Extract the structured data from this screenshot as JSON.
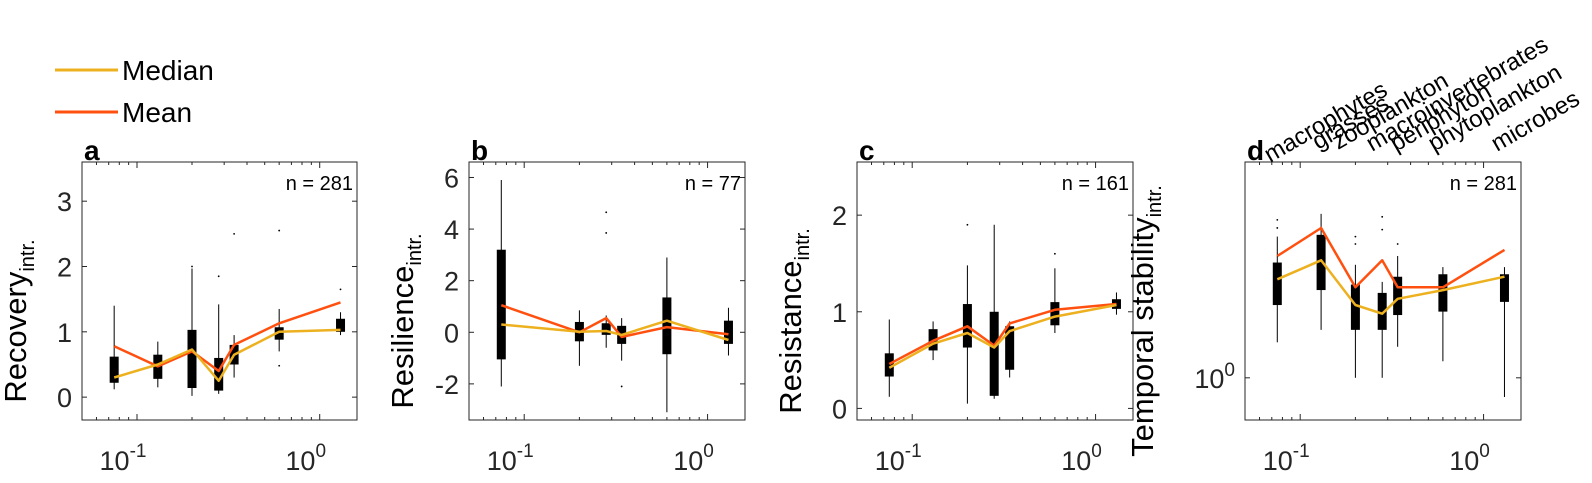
{
  "legend": [
    {
      "label": "Median",
      "color": "#EDB120"
    },
    {
      "label": "Mean",
      "color": "#FF5010"
    }
  ],
  "categories": [
    "macrophytes",
    "grasses",
    "zooplankton",
    "macroinvertebrates",
    "periphyton",
    "phytoplankton",
    "microbes"
  ],
  "chart_data": [
    {
      "type": "box",
      "panel_label": "a",
      "n_text": "n = 281",
      "ylabel_main": "Recovery",
      "ylabel_sub": "intr.",
      "xscale": "log",
      "xlim": [
        0.05,
        1.6
      ],
      "ylim": [
        -0.35,
        3.6
      ],
      "yticks": [
        {
          "v": 0,
          "t": "0"
        },
        {
          "v": 1,
          "t": "1"
        },
        {
          "v": 2,
          "t": "2"
        },
        {
          "v": 3,
          "t": "3"
        }
      ],
      "xticks": [
        {
          "v": 0.1,
          "b": "10",
          "e": "-1"
        },
        {
          "v": 1,
          "b": "10",
          "e": "0"
        }
      ],
      "x": [
        0.075,
        0.13,
        0.2,
        0.28,
        0.34,
        0.6,
        1.3
      ],
      "median": [
        0.3,
        0.5,
        0.73,
        0.25,
        0.65,
        1.0,
        1.03
      ],
      "mean": [
        0.78,
        0.47,
        0.7,
        0.4,
        0.8,
        1.13,
        1.45
      ],
      "boxes": [
        {
          "low": 0.12,
          "q1": 0.22,
          "q3": 0.62,
          "high": 1.4
        },
        {
          "low": 0.15,
          "q1": 0.28,
          "q3": 0.65,
          "high": 0.85
        },
        {
          "low": 0.02,
          "q1": 0.14,
          "q3": 1.03,
          "high": 1.97
        },
        {
          "low": 0.05,
          "q1": 0.1,
          "q3": 0.6,
          "high": 1.42
        },
        {
          "low": 0.3,
          "q1": 0.5,
          "q3": 0.8,
          "high": 0.95
        },
        {
          "low": 0.7,
          "q1": 0.88,
          "q3": 1.07,
          "high": 1.35
        },
        {
          "low": 0.95,
          "q1": 1.0,
          "q3": 1.2,
          "high": 1.3
        }
      ],
      "outliers": [
        {
          "x": 0.2,
          "y": 2.0
        },
        {
          "x": 0.28,
          "y": 1.85
        },
        {
          "x": 0.34,
          "y": 2.5
        },
        {
          "x": 0.6,
          "y": 2.55
        },
        {
          "x": 0.6,
          "y": 0.48
        },
        {
          "x": 1.3,
          "y": 1.65
        }
      ]
    },
    {
      "type": "box",
      "panel_label": "b",
      "n_text": "n = 77",
      "ylabel_main": "Resilience",
      "ylabel_sub": "intr.",
      "xscale": "log",
      "xlim": [
        0.05,
        1.6
      ],
      "ylim": [
        -3.4,
        6.6
      ],
      "yticks": [
        {
          "v": -2,
          "t": "-2"
        },
        {
          "v": 0,
          "t": "0"
        },
        {
          "v": 2,
          "t": "2"
        },
        {
          "v": 4,
          "t": "4"
        },
        {
          "v": 6,
          "t": "6"
        }
      ],
      "xticks": [
        {
          "v": 0.1,
          "b": "10",
          "e": "-1"
        },
        {
          "v": 1,
          "b": "10",
          "e": "0"
        }
      ],
      "x": [
        0.075,
        0.2,
        0.28,
        0.34,
        0.6,
        1.3
      ],
      "median": [
        0.3,
        0.02,
        0.05,
        -0.1,
        0.45,
        -0.3
      ],
      "mean": [
        1.05,
        0.0,
        0.55,
        -0.18,
        0.2,
        -0.08
      ],
      "boxes": [
        {
          "low": -2.1,
          "q1": -1.05,
          "q3": 3.2,
          "high": 5.9
        },
        {
          "low": -1.3,
          "q1": -0.35,
          "q3": 0.4,
          "high": 0.85
        },
        {
          "low": -0.6,
          "q1": -0.1,
          "q3": 0.35,
          "high": 0.65
        },
        {
          "low": -1.1,
          "q1": -0.45,
          "q3": 0.25,
          "high": 0.55
        },
        {
          "low": -3.1,
          "q1": -0.85,
          "q3": 1.35,
          "high": 2.9
        },
        {
          "low": -0.9,
          "q1": -0.45,
          "q3": 0.45,
          "high": 0.95
        }
      ],
      "outliers": [
        {
          "x": 0.28,
          "y": 4.65
        },
        {
          "x": 0.28,
          "y": 3.85
        },
        {
          "x": 0.34,
          "y": -2.1
        }
      ]
    },
    {
      "type": "box",
      "panel_label": "c",
      "n_text": "n = 161",
      "ylabel_main": "Resistance",
      "ylabel_sub": "intr.",
      "xscale": "log",
      "xlim": [
        0.05,
        1.6
      ],
      "ylim": [
        -0.12,
        2.55
      ],
      "yticks": [
        {
          "v": 0,
          "t": "0"
        },
        {
          "v": 1,
          "t": "1"
        },
        {
          "v": 2,
          "t": "2"
        }
      ],
      "xticks": [
        {
          "v": 0.1,
          "b": "10",
          "e": "-1"
        },
        {
          "v": 1,
          "b": "10",
          "e": "0"
        }
      ],
      "x": [
        0.075,
        0.13,
        0.2,
        0.28,
        0.34,
        0.6,
        1.3
      ],
      "median": [
        0.42,
        0.67,
        0.78,
        0.63,
        0.8,
        0.95,
        1.07
      ],
      "mean": [
        0.46,
        0.7,
        0.85,
        0.65,
        0.88,
        1.02,
        1.08
      ],
      "boxes": [
        {
          "low": 0.12,
          "q1": 0.33,
          "q3": 0.57,
          "high": 0.92
        },
        {
          "low": 0.5,
          "q1": 0.6,
          "q3": 0.82,
          "high": 0.9
        },
        {
          "low": 0.05,
          "q1": 0.63,
          "q3": 1.08,
          "high": 1.48
        },
        {
          "low": 0.1,
          "q1": 0.13,
          "q3": 1.0,
          "high": 1.9
        },
        {
          "low": 0.32,
          "q1": 0.4,
          "q3": 0.85,
          "high": 0.9
        },
        {
          "low": 0.78,
          "q1": 0.86,
          "q3": 1.1,
          "high": 1.45
        },
        {
          "low": 0.97,
          "q1": 1.03,
          "q3": 1.13,
          "high": 1.2
        }
      ],
      "outliers": [
        {
          "x": 0.2,
          "y": 1.9
        },
        {
          "x": 0.6,
          "y": 1.6
        }
      ]
    },
    {
      "type": "box",
      "panel_label": "d",
      "n_text": "n = 281",
      "ylabel_main": "Temporal stability",
      "ylabel_sub": "intr.",
      "xscale": "log",
      "yscale": "log",
      "xlim": [
        0.05,
        1.6
      ],
      "ylim": [
        0.7,
        6.2
      ],
      "yticks": [
        {
          "v": 1,
          "b": "10",
          "e": "0"
        }
      ],
      "xticks": [
        {
          "v": 0.1,
          "b": "10",
          "e": "-1"
        },
        {
          "v": 1,
          "b": "10",
          "e": "0"
        }
      ],
      "x": [
        0.075,
        0.13,
        0.2,
        0.28,
        0.34,
        0.6,
        1.3
      ],
      "median": [
        2.3,
        2.7,
        1.85,
        1.72,
        1.95,
        2.1,
        2.35
      ],
      "mean": [
        2.8,
        3.55,
        2.15,
        2.7,
        2.15,
        2.15,
        2.95
      ],
      "boxes": [
        {
          "low": 1.35,
          "q1": 1.85,
          "q3": 2.65,
          "high": 3.3
        },
        {
          "low": 1.5,
          "q1": 2.1,
          "q3": 3.35,
          "high": 4.0
        },
        {
          "low": 1.0,
          "q1": 1.5,
          "q3": 2.2,
          "high": 2.6
        },
        {
          "low": 1.0,
          "q1": 1.5,
          "q3": 2.05,
          "high": 2.25
        },
        {
          "low": 1.3,
          "q1": 1.7,
          "q3": 2.35,
          "high": 2.8
        },
        {
          "low": 1.15,
          "q1": 1.75,
          "q3": 2.4,
          "high": 2.55
        },
        {
          "low": 0.85,
          "q1": 1.9,
          "q3": 2.4,
          "high": 2.55
        }
      ],
      "outliers": [
        {
          "x": 0.075,
          "y": 3.8
        },
        {
          "x": 0.075,
          "y": 3.55
        },
        {
          "x": 0.2,
          "y": 3.3
        },
        {
          "x": 0.2,
          "y": 3.1
        },
        {
          "x": 0.28,
          "y": 3.9
        },
        {
          "x": 0.28,
          "y": 3.5
        },
        {
          "x": 0.34,
          "y": 3.1
        }
      ]
    }
  ]
}
